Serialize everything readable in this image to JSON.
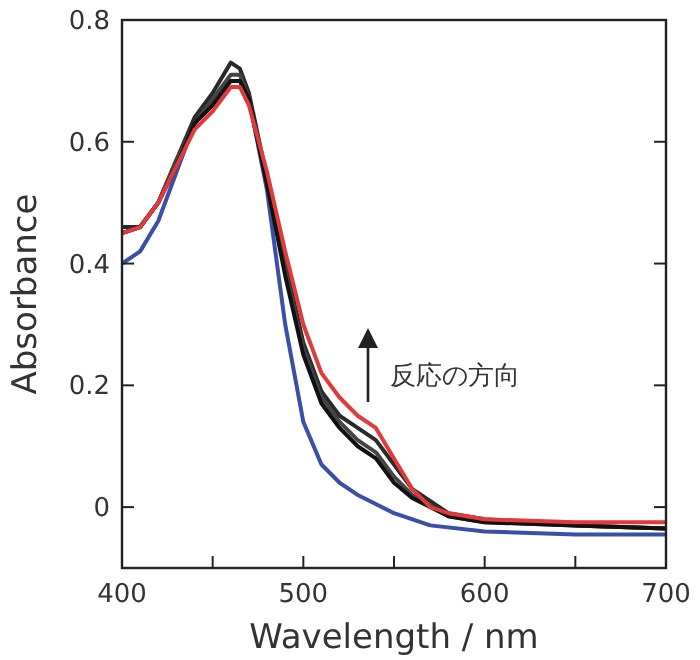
{
  "chart_data": {
    "type": "line",
    "xlabel": "Wavelength / nm",
    "ylabel": "Absorbance",
    "xlim": [
      400,
      700
    ],
    "ylim": [
      -0.1,
      0.8
    ],
    "xticks": [
      400,
      {
        "value": 450,
        "label": null
      },
      500,
      {
        "value": 550,
        "label": null
      },
      600,
      {
        "value": 650,
        "label": null
      },
      700
    ],
    "yticks": [
      0,
      0.2,
      0.4,
      0.6,
      0.8
    ],
    "grid": false,
    "line_style": "solid",
    "marker": "none",
    "annotations": [
      "反応の方向"
    ],
    "series": [
      {
        "color": "#3a4fa8",
        "x": [
          400,
          410,
          420,
          430,
          440,
          450,
          460,
          465,
          470,
          480,
          490,
          500,
          510,
          520,
          530,
          550,
          570,
          600,
          650,
          700
        ],
        "values": [
          0.4,
          0.42,
          0.47,
          0.55,
          0.63,
          0.67,
          0.7,
          0.7,
          0.67,
          0.52,
          0.3,
          0.14,
          0.07,
          0.04,
          0.02,
          -0.01,
          -0.03,
          -0.04,
          -0.045,
          -0.045
        ]
      },
      {
        "color": "#2a2a2a",
        "x": [
          400,
          410,
          420,
          430,
          440,
          450,
          460,
          465,
          470,
          480,
          490,
          500,
          510,
          520,
          530,
          540,
          550,
          560,
          580,
          600,
          650,
          700
        ],
        "values": [
          0.46,
          0.46,
          0.5,
          0.57,
          0.64,
          0.68,
          0.73,
          0.72,
          0.68,
          0.54,
          0.4,
          0.27,
          0.19,
          0.15,
          0.13,
          0.11,
          0.07,
          0.03,
          -0.01,
          -0.02,
          -0.03,
          -0.035
        ]
      },
      {
        "color": "#444444",
        "x": [
          400,
          410,
          420,
          430,
          440,
          450,
          460,
          465,
          470,
          480,
          490,
          500,
          510,
          520,
          530,
          540,
          550,
          560,
          580,
          600,
          650,
          700
        ],
        "values": [
          0.45,
          0.46,
          0.5,
          0.57,
          0.63,
          0.67,
          0.71,
          0.71,
          0.67,
          0.53,
          0.39,
          0.26,
          0.18,
          0.14,
          0.11,
          0.09,
          0.05,
          0.02,
          -0.015,
          -0.025,
          -0.03,
          -0.035
        ]
      },
      {
        "color": "#111111",
        "x": [
          400,
          410,
          420,
          430,
          440,
          450,
          460,
          465,
          470,
          480,
          490,
          500,
          510,
          520,
          530,
          540,
          550,
          560,
          580,
          600,
          650,
          700
        ],
        "values": [
          0.45,
          0.46,
          0.5,
          0.56,
          0.63,
          0.66,
          0.7,
          0.7,
          0.67,
          0.53,
          0.38,
          0.25,
          0.17,
          0.13,
          0.1,
          0.08,
          0.04,
          0.015,
          -0.015,
          -0.025,
          -0.03,
          -0.035
        ]
      },
      {
        "color": "#e03a3a",
        "x": [
          400,
          410,
          420,
          430,
          440,
          450,
          460,
          465,
          470,
          480,
          490,
          500,
          510,
          520,
          530,
          540,
          550,
          560,
          570,
          580,
          600,
          650,
          700
        ],
        "values": [
          0.45,
          0.46,
          0.5,
          0.56,
          0.62,
          0.65,
          0.69,
          0.69,
          0.66,
          0.55,
          0.42,
          0.3,
          0.22,
          0.18,
          0.15,
          0.13,
          0.08,
          0.03,
          0.0,
          -0.01,
          -0.02,
          -0.025,
          -0.025
        ]
      }
    ]
  }
}
